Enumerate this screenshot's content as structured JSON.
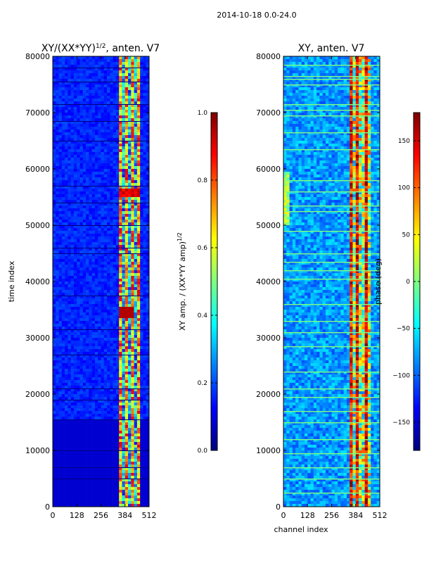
{
  "suptitle": "2014-10-18 0.0-24.0",
  "colormap": [
    "#00007f",
    "#0000ff",
    "#007fff",
    "#00ffff",
    "#7fff7f",
    "#ffff00",
    "#ff7f00",
    "#ff0000",
    "#7f0000"
  ],
  "chart_data": [
    {
      "type": "heatmap",
      "title": "XY/(XX*YY)",
      "title_exponent": "1/2",
      "title_suffix": ", anten. V7",
      "xlabel": "",
      "ylabel": "time index",
      "x_ticks": [
        0,
        128,
        256,
        384,
        512
      ],
      "y_ticks": [
        0,
        10000,
        20000,
        30000,
        40000,
        50000,
        60000,
        70000,
        80000
      ],
      "xlim": [
        0,
        512
      ],
      "ylim": [
        0,
        80000
      ],
      "colorbar": {
        "label": "XY amp. / (XX*YY amp)",
        "label_exponent": "1/2",
        "range": [
          0.0,
          1.0
        ],
        "ticks": [
          "0.0",
          "0.2",
          "0.4",
          "0.6",
          "0.8",
          "1.0"
        ]
      }
    },
    {
      "type": "heatmap",
      "title": "XY, anten. V7",
      "xlabel": "channel index",
      "ylabel": "",
      "x_ticks": [
        0,
        128,
        256,
        384,
        512
      ],
      "y_ticks": [
        0,
        10000,
        20000,
        30000,
        40000,
        50000,
        60000,
        70000,
        80000
      ],
      "xlim": [
        0,
        512
      ],
      "ylim": [
        0,
        80000
      ],
      "colorbar": {
        "label": "phase (deg)",
        "range": [
          -180,
          180
        ],
        "ticks": [
          "−150",
          "−100",
          "−50",
          "0",
          "50",
          "100",
          "150"
        ]
      }
    }
  ]
}
